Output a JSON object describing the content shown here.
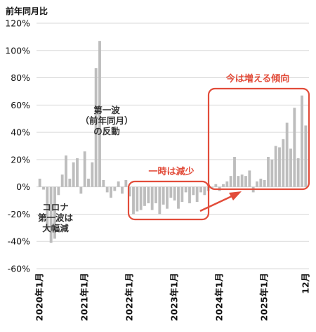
{
  "chart_data": {
    "type": "bar",
    "ylabel": "前年同月比",
    "y_ticks": [
      "120%",
      "100%",
      "80%",
      "60%",
      "40%",
      "20%",
      "0%",
      "-20%",
      "-40%",
      "-60%"
    ],
    "ylim": [
      -60,
      120
    ],
    "x_ticks": [
      "2020年1月",
      "2021年1月",
      "2022年1月",
      "2023年1月",
      "2024年1月",
      "2025年1月",
      "12月"
    ],
    "x_tick_months": [
      0,
      12,
      24,
      36,
      48,
      60,
      71
    ],
    "months": 72,
    "bar_color": "#bdbdbd",
    "values": [
      6,
      -2,
      -32,
      -41,
      -38,
      -6,
      9,
      23,
      6,
      18,
      21,
      -5,
      26,
      6,
      18,
      87,
      107,
      5,
      -4,
      -8,
      -3,
      4,
      -5,
      5,
      -7,
      -20,
      -18,
      -17,
      -14,
      -12,
      -17,
      -12,
      -20,
      -13,
      -16,
      -8,
      -10,
      -16,
      -11,
      -4,
      -12,
      -6,
      -11,
      -4,
      -6,
      -3,
      -1,
      2,
      -3,
      2,
      4,
      8,
      22,
      8,
      9,
      8,
      12,
      -4,
      4,
      6,
      5,
      22,
      20,
      30,
      29,
      35,
      47,
      28,
      58,
      21,
      67,
      45
    ]
  },
  "annotations": {
    "covid_line1": "コロナ",
    "covid_line2": "第一波は",
    "covid_line3": "大幅減",
    "rebound_line1": "第一波",
    "rebound_line2": "（前年同月）",
    "rebound_line3": "の反動",
    "temporary_decrease": "一時は減少",
    "increasing_trend": "今は増える傾向"
  },
  "colors": {
    "accent": "#e24c3a",
    "bar": "#bdbdbd",
    "grid": "#d9d9d9"
  }
}
